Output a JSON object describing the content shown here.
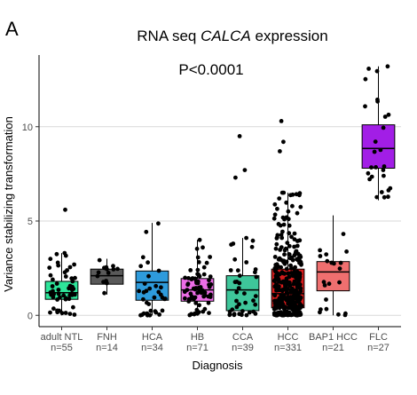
{
  "panel_label": "A",
  "chart_data": {
    "type": "box",
    "title": {
      "prefix": "RNA seq ",
      "gene": "CALCA",
      "suffix": " expression"
    },
    "annotation": "P<0.0001",
    "xlabel": "Diagnosis",
    "ylabel": "Variance stabilizing transformation",
    "ylim": [
      -0.6,
      13.8
    ],
    "yticks": [
      0,
      5,
      10
    ],
    "grid": true,
    "categories": [
      {
        "name": "adult NTL",
        "n": "n=55",
        "color": "#2ee59a",
        "q1": 0.85,
        "median": 1.2,
        "q3": 1.8,
        "whisker_low": 0.0,
        "whisker_high": 3.3,
        "outliers": [
          5.6
        ]
      },
      {
        "name": "FNH",
        "n": "n=14",
        "color": "#595959",
        "q1": 1.65,
        "median": 2.1,
        "q3": 2.45,
        "whisker_low": 1.1,
        "whisker_high": 3.0,
        "outliers": []
      },
      {
        "name": "HCA",
        "n": "n=34",
        "color": "#2e9bdc",
        "q1": 0.8,
        "median": 1.75,
        "q3": 2.35,
        "whisker_low": 0.0,
        "whisker_high": 4.9,
        "outliers": []
      },
      {
        "name": "HB",
        "n": "n=71",
        "color": "#ec6de6",
        "q1": 0.75,
        "median": 1.35,
        "q3": 1.95,
        "whisker_low": 0.0,
        "whisker_high": 4.0,
        "outliers": []
      },
      {
        "name": "CCA",
        "n": "n=39",
        "color": "#3ec69a",
        "q1": 0.25,
        "median": 1.35,
        "q3": 2.1,
        "whisker_low": 0.0,
        "whisker_high": 4.1,
        "outliers": [
          7.3,
          7.7,
          9.5
        ]
      },
      {
        "name": "HCC",
        "n": "n=331",
        "color": "#d81b1b",
        "q1": 0.4,
        "median": 1.15,
        "q3": 2.45,
        "whisker_low": 0.0,
        "whisker_high": 6.5,
        "outliers": [
          8.7,
          9.2,
          10.3
        ]
      },
      {
        "name": "BAP1 HCC",
        "n": "n=21",
        "color": "#ef6f6f",
        "q1": 1.3,
        "median": 2.3,
        "q3": 2.85,
        "whisker_low": 0.0,
        "whisker_high": 5.3,
        "outliers": []
      },
      {
        "name": "FLC",
        "n": "n=27",
        "color": "#a21ee6",
        "q1": 7.8,
        "median": 8.85,
        "q3": 10.1,
        "whisker_low": 6.1,
        "whisker_high": 13.2,
        "outliers": []
      }
    ]
  }
}
